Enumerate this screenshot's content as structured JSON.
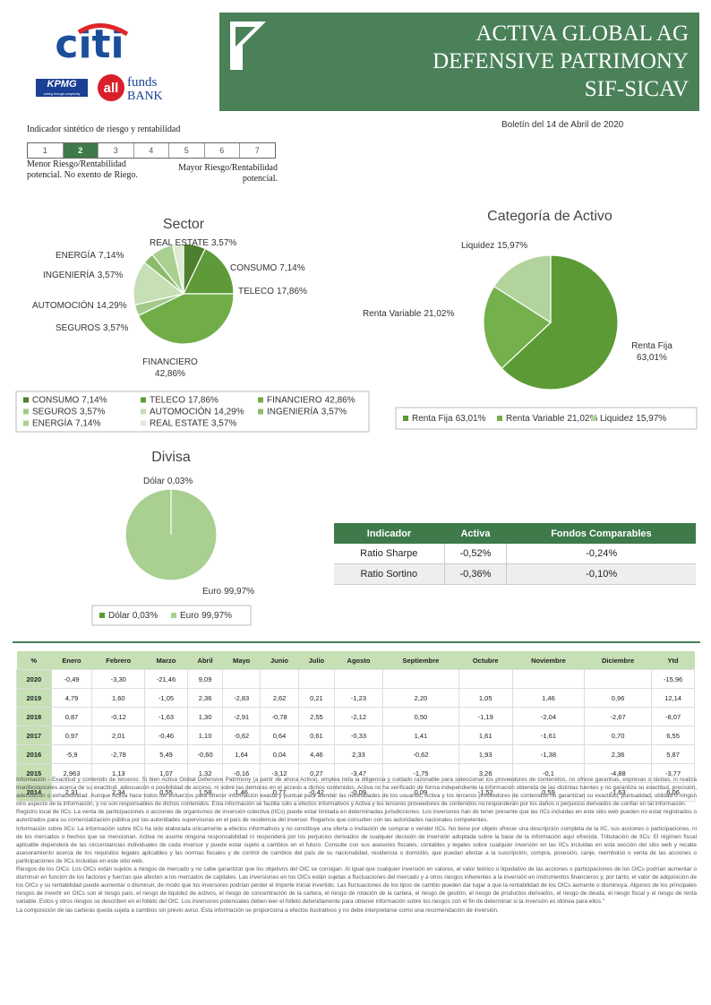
{
  "logos": {
    "citi": "citi",
    "kpmg": "KPMG",
    "kpmg_tagline": "cutting through complexity",
    "allfunds": [
      "all",
      "funds",
      "BANK"
    ]
  },
  "header": {
    "title_lines": [
      "ACTIVA GLOBAL AG",
      "DEFENSIVE PATRIMONY",
      "SIF-SICAV"
    ],
    "bulletin": "Boletín del 14 de Abril de 2020"
  },
  "risk": {
    "title": "Indicador sintético de riesgo y rentabilidad",
    "levels": [
      1,
      2,
      3,
      4,
      5,
      6,
      7
    ],
    "selected": 2,
    "low": [
      "Menor Riesgo/Rentabilidad",
      "potencial. No exento de Riego."
    ],
    "high": [
      "Mayor Riesgo/Rentabilidad",
      "potencial."
    ]
  },
  "chart_data": [
    {
      "type": "pie",
      "title": "Sector",
      "categories": [
        "CONSUMO",
        "TELECO",
        "FINANCIERO",
        "SEGUROS",
        "AUTOMOCIÓN",
        "INGENIERÍA",
        "ENERGÍA",
        "REAL ESTATE"
      ],
      "values": [
        7.14,
        17.86,
        42.86,
        3.57,
        14.29,
        3.57,
        7.14,
        3.57
      ],
      "value_labels": [
        "7,14%",
        "17,86%",
        "42,86%",
        "3,57%",
        "14,29%",
        "3,57%",
        "7,14%",
        "3,57%"
      ],
      "colors": [
        "#4e7f2f",
        "#5e9b38",
        "#70ad47",
        "#a3c98a",
        "#c6dfb5",
        "#8dbb6c",
        "#a9cf91",
        "#dcebd1"
      ]
    },
    {
      "type": "pie",
      "title": "Categoría de Activo",
      "categories": [
        "Renta Fija",
        "Renta Variable",
        "Liquidez"
      ],
      "values": [
        63.01,
        21.02,
        15.97
      ],
      "value_labels": [
        "63,01%",
        "21,02%",
        "15,97%"
      ],
      "colors": [
        "#5b9a35",
        "#74b04b",
        "#b2d39c"
      ]
    },
    {
      "type": "pie",
      "title": "Divisa",
      "categories": [
        "Dólar",
        "Euro"
      ],
      "values": [
        0.03,
        99.97
      ],
      "value_labels": [
        "0,03%",
        "99,97%"
      ],
      "colors": [
        "#5b9a35",
        "#a9cf91"
      ]
    }
  ],
  "ratios": {
    "headers": [
      "Indicador",
      "Activa",
      "Fondos Comparables"
    ],
    "rows": [
      [
        "Ratio Sharpe",
        "-0,52%",
        "-0,24%"
      ],
      [
        "Ratio Sortino",
        "-0,36%",
        "-0,10%"
      ]
    ]
  },
  "returns": {
    "headers": [
      "%",
      "Enero",
      "Febrero",
      "Marzo",
      "Abril",
      "Mayo",
      "Junio",
      "Julio",
      "Agosto",
      "Septiembre",
      "Octubre",
      "Noviembre",
      "Diciembre",
      "Ytd"
    ],
    "rows": [
      [
        "2020",
        "-0,49",
        "-3,30",
        "-21,46",
        "9,09",
        null,
        null,
        null,
        null,
        null,
        null,
        null,
        null,
        "-15,96"
      ],
      [
        "2019",
        "4,79",
        "1,60",
        "-1,05",
        "2,36",
        "-2,83",
        "2,62",
        "0,21",
        "-1,23",
        "2,20",
        "1,05",
        "1,46",
        "0,96",
        "12,14"
      ],
      [
        "2018",
        "0,87",
        "-0,12",
        "-1,63",
        "1,30",
        "-2,91",
        "-0,78",
        "2,55",
        "-2,12",
        "0,50",
        "-1,19",
        "-2,04",
        "-2,67",
        "-8,07"
      ],
      [
        "2017",
        "0,97",
        "2,01",
        "-0,46",
        "1,10",
        "-0,62",
        "0,64",
        "0,61",
        "-0,33",
        "1,41",
        "1,61",
        "-1,61",
        "0,70",
        "6,55"
      ],
      [
        "2016",
        "-5,9",
        "-2,78",
        "5,49",
        "-0,60",
        "1,64",
        "0,04",
        "4,46",
        "2,33",
        "-0,62",
        "1,93",
        "-1,38",
        "2,36",
        "5,87"
      ],
      [
        "2015",
        "2,963",
        "1,13",
        "1,07",
        "1,32",
        "-0,16",
        "-3,12",
        "0,27",
        "-3,47",
        "-1,75",
        "3,26",
        "-0,1",
        "-4,88",
        "-3,77"
      ],
      [
        "2014",
        "2,31",
        "2,34",
        "0,55",
        "1,58",
        "1,46",
        "0,77",
        "-0,42",
        "-0,09",
        "0,09",
        "-1,52",
        "0,59",
        "-1,63",
        "6,06"
      ]
    ]
  },
  "disclaimer": [
    "Información - Exactitud y contenido de terceros: Si bien Activa Global Defensive Patrimony (a partir de ahora Activa), emplea toda la diligencia y cuidado razonable para seleccionar los proveedores de contenidos, no ofrece garantías, expresas o tácitas, ni realiza manifestaciones acerca de su exactitud, adecuación o posibilidad de acceso, ni sobre las demoras en el acceso a dichos contenidos. Activa no ha verificado de forma independiente la información obtenida de las distintas fuentes y no garantiza su exactitud, precisión, adecuación o exhaustividad. Aunque Activa hace todos los esfuerzos para ofrecer información exacta y puntual para atender las necesidades de los usuarios, Activa y los terceros proveedores de contenidos no garantizan su exactitud, puntualidad, utilidad o ningún otro aspecto de la información, y no son responsables de dichos contenidos. Esta información se facilita sólo a efectos informativos y Activa y los terceros proveedores de contenidos no responderán por los daños o perjuicios derivados de confiar en tal información.",
    "Registro local de IICs: La venta de participaciones o acciones de organismos de inversión colectiva (IICs) puede estar limitada en determinadas jurisdicciones. Los inversores han de tener presente que las IICs incluidas en este sitio web pueden no estar registrados o autorizados para su comercialización pública por las autoridades supervisoras en el país de residencia del inversor. Rogamos que consulten con las autoridades nacionales competentes.",
    "Información sobre IICs: La información sobre IICs ha sido elaborada únicamente a efectos informativos y no constituye una oferta o invitación de comprar o vender IICs. No tiene por objeto ofrecer una descripción completa de la IIC, sus acciones o participaciones, ni de los mercados o hechos que se mencionan. Activa no asume ninguna responsabilidad ni responderá por los perjuicios derivados de cualquier decisión de inversión adoptada sobre la base de la información aquí ofrecida. Tributación de IICs: El régimen fiscal aplicable dependerá de las circunstancias individuales de cada inversor y puede estar sujeto a cambios en el futuro. Consulte con sus asesores fiscales, contables y legales sobre cualquier inversión en las IICs incluidas en esta sección del sitio web y recabe asesoramiento acerca de los requisitos legales aplicables y las normas fiscales y de control de cambios del país de su nacionalidad, residencia o domicilio, que puedan afectar a la suscripción, compra, posesión, canje, reembolso o venta de las acciones o participaciones de IICs incluidas en este sitio web.",
    "Riesgos de los OICs: Los OICs están sujetos a riesgos de mercado y no cabe garantizar que los objetivos del OIC se consigan. Al igual que cualquier inversión en valores, el valor teórico o liquidativo de las acciones o participaciones de los OICs podrían aumentar o disminuir en función de los factores y fuerzas que afecten a los mercados de capitales. Las inversiones en los OICs están sujetas a fluctuaciones del mercado y a otros riesgos inherentes a la inversión en instrumentos financieros y, por tanto, el valor de adquisición de los OICs y su rentabilidad puede aumentar o disminuir, de modo que los inversores podrían perder el importe inicial invertido. Las fluctuaciones de los tipos de cambio pueden dar lugar a que la rentabilidad de los OICs aumente o disminuya. Algunos de los principales riesgos de invertir en OICs son el riesgo país, el riesgo de liquidez de activos, el riesgo de concentración de la cartera, el riesgo de rotación de la cartera, el riesgo de gestión, el riesgo de productos derivados, el riesgo de deuda, el riesgo fiscal y el riesgo de renta variable. Estos y otros riesgos se describen en el folleto del OIC. Los inversores potenciales deben leer el folleto detenidamente para obtener información sobre los riesgos con el fin de determinar si la inversión es idónea para ellos.”",
    "La composición de las carteras queda sujeta a cambios sin previo aviso. Esta información se proporciona a efectos ilustrativos y no debe interpretarse como una recomendación de inversión."
  ]
}
